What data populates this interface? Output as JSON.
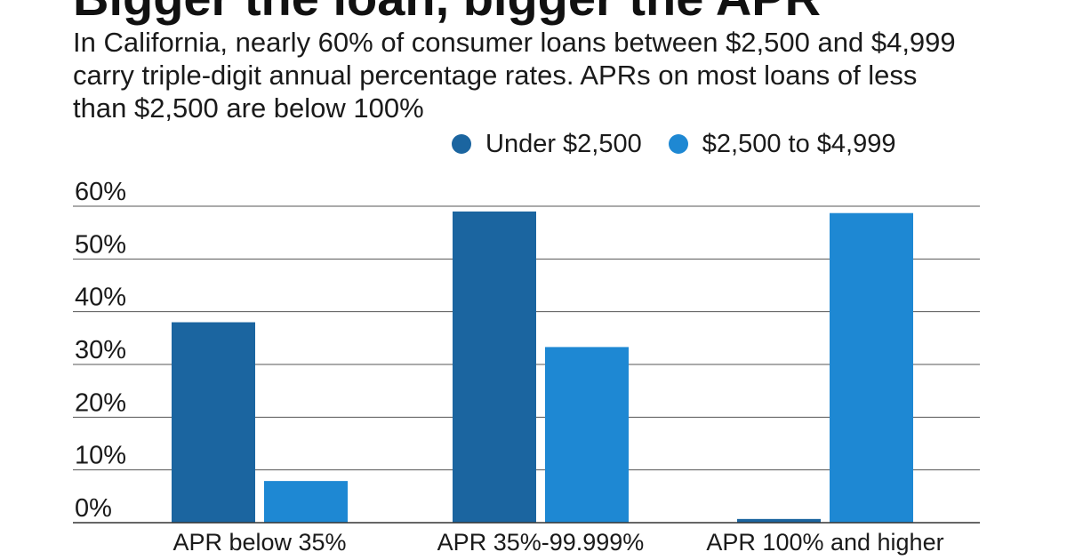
{
  "title": "Bigger the loan, bigger the APR",
  "subtitle": "In California, nearly 60% of consumer loans between $2,500 and $4,999 carry triple-digit annual percentage rates. APRs on most loans of less than $2,500 are below 100%",
  "chart_data": {
    "type": "bar",
    "title": "Bigger the loan, bigger the APR",
    "subtitle": "In California, nearly 60% of consumer loans between $2,500 and $4,999 carry triple-digit annual percentage rates. APRs on most loans of less than $2,500 are below 100%",
    "categories": [
      "APR below 35%",
      "APR 35%-99.999%",
      "APR 100% and higher"
    ],
    "series": [
      {
        "name": "Under $2,500",
        "color": "#1b65a0",
        "values": [
          38,
          59,
          0.7
        ]
      },
      {
        "name": "$2,500 to $4,999",
        "color": "#1e88d3",
        "values": [
          7.9,
          33.3,
          58.7
        ]
      }
    ],
    "yticks": [
      "0%",
      "10%",
      "20%",
      "30%",
      "40%",
      "50%",
      "60%"
    ],
    "ylim": [
      0,
      60
    ],
    "xlabel": "",
    "ylabel": "",
    "grid": true,
    "legend_position": "top-right"
  }
}
